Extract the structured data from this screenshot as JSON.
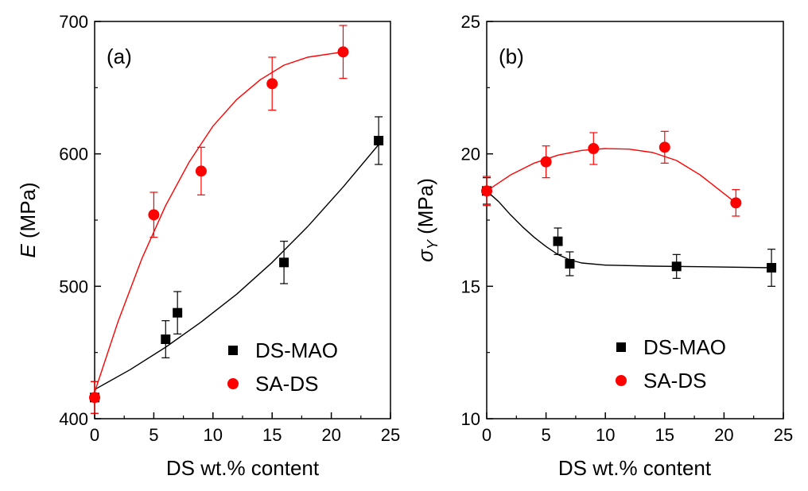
{
  "chart_data": [
    {
      "type": "scatter",
      "panel_label": "(a)",
      "xlabel": "DS wt.% content",
      "ylabel_symbol": "E",
      "ylabel_unit": " (MPa)",
      "xlim": [
        0,
        25
      ],
      "ylim": [
        400,
        700
      ],
      "xticks": [
        0,
        5,
        10,
        15,
        20,
        25
      ],
      "yticks": [
        400,
        500,
        600,
        700
      ],
      "grid": false,
      "legend_position": "bottom-right",
      "series": [
        {
          "name": "DS-MAO",
          "marker": "square",
          "color": "#000000",
          "x": [
            0,
            6,
            7,
            16,
            24
          ],
          "y": [
            416,
            460,
            480,
            518,
            610
          ],
          "err": [
            12,
            14,
            16,
            16,
            18
          ],
          "fit": [
            [
              0,
              422
            ],
            [
              3,
              437
            ],
            [
              6,
              454
            ],
            [
              9,
              473
            ],
            [
              12,
              494
            ],
            [
              15,
              518
            ],
            [
              18,
              545
            ],
            [
              21,
              575
            ],
            [
              24,
              607
            ]
          ]
        },
        {
          "name": "SA-DS",
          "marker": "circle",
          "color": "#ff0000",
          "x": [
            0,
            5,
            9,
            15,
            21
          ],
          "y": [
            416,
            554,
            587,
            653,
            677
          ],
          "err": [
            12,
            17,
            18,
            20,
            20
          ],
          "fit": [
            [
              0,
              420
            ],
            [
              2,
              474
            ],
            [
              4,
              521
            ],
            [
              6,
              561
            ],
            [
              8,
              594
            ],
            [
              10,
              621
            ],
            [
              12,
              641
            ],
            [
              14,
              656
            ],
            [
              16,
              667
            ],
            [
              18,
              673
            ],
            [
              21,
              677
            ]
          ]
        }
      ]
    },
    {
      "type": "scatter",
      "panel_label": "(b)",
      "xlabel": "DS wt.% content",
      "ylabel_symbol": "σ",
      "ylabel_subscript": "Y",
      "ylabel_unit": " (MPa)",
      "xlim": [
        0,
        25
      ],
      "ylim": [
        10,
        25
      ],
      "xticks": [
        0,
        5,
        10,
        15,
        20,
        25
      ],
      "yticks": [
        10,
        15,
        20,
        25
      ],
      "grid": false,
      "legend_position": "bottom-right",
      "series": [
        {
          "name": "DS-MAO",
          "marker": "square",
          "color": "#000000",
          "x": [
            0,
            6,
            7,
            16,
            24
          ],
          "y": [
            18.6,
            16.7,
            15.85,
            15.75,
            15.7
          ],
          "err": [
            0.5,
            0.5,
            0.45,
            0.45,
            0.7
          ],
          "fit": [
            [
              0,
              18.6
            ],
            [
              1,
              18.2
            ],
            [
              2,
              17.7
            ],
            [
              3,
              17.25
            ],
            [
              4,
              16.85
            ],
            [
              5,
              16.5
            ],
            [
              6,
              16.2
            ],
            [
              7,
              16.0
            ],
            [
              8,
              15.88
            ],
            [
              10,
              15.8
            ],
            [
              14,
              15.76
            ],
            [
              18,
              15.74
            ],
            [
              24,
              15.7
            ]
          ]
        },
        {
          "name": "SA-DS",
          "marker": "circle",
          "color": "#ff0000",
          "x": [
            0,
            5,
            9,
            15,
            21
          ],
          "y": [
            18.6,
            19.7,
            20.2,
            20.25,
            18.15
          ],
          "err": [
            0.55,
            0.6,
            0.6,
            0.6,
            0.5
          ],
          "fit": [
            [
              0,
              18.6
            ],
            [
              2,
              19.2
            ],
            [
              4,
              19.65
            ],
            [
              6,
              19.95
            ],
            [
              8,
              20.13
            ],
            [
              10,
              20.2
            ],
            [
              12,
              20.18
            ],
            [
              14,
              20.05
            ],
            [
              16,
              19.75
            ],
            [
              18,
              19.2
            ],
            [
              20,
              18.5
            ],
            [
              21,
              18.15
            ]
          ]
        }
      ]
    }
  ]
}
